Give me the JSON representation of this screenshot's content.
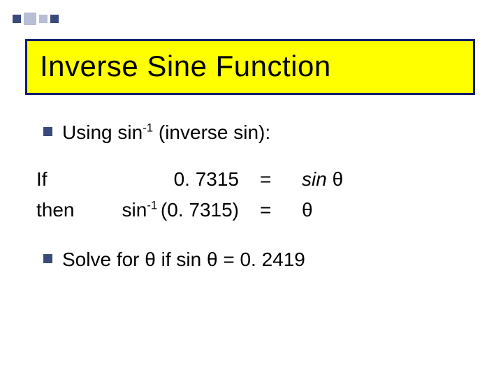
{
  "decoration": {
    "squares": [
      {
        "color": "#3a4a7a",
        "size": "small"
      },
      {
        "color": "#b8bed4",
        "size": "normal"
      },
      {
        "color": "#b8bed4",
        "size": "small"
      },
      {
        "color": "#3a4a7a",
        "size": "small"
      }
    ]
  },
  "title": {
    "text": "Inverse Sine Function",
    "border_color": "#0b1d6b",
    "background_color": "#ffff00",
    "text_color": "#000000",
    "fontsize": 42
  },
  "body": {
    "fontsize": 28,
    "text_color": "#000000",
    "bullet_color": "#3a4a7a"
  },
  "bullet1": {
    "prefix": "Using sin",
    "sup": "-1",
    "suffix": " (inverse sin):"
  },
  "equations": {
    "row1": {
      "label": "If",
      "mid": "0. 7315",
      "eq": "=",
      "rhs_prefix": "sin ",
      "rhs_theta": "θ"
    },
    "row2": {
      "label": "then",
      "mid_pre": "sin",
      "mid_sup": "-1 ",
      "mid_post": "(0. 7315)",
      "eq": "=",
      "rhs_theta": "θ"
    }
  },
  "bullet2": {
    "text": "Solve for θ if sin θ = 0. 2419"
  }
}
